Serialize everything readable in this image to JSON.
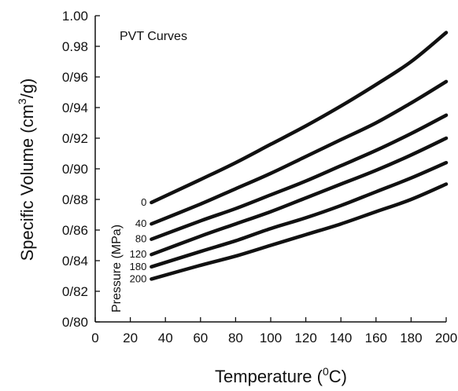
{
  "chart_data": {
    "type": "line",
    "title": "PVT Curves",
    "xlabel_main": "Temperature (",
    "xlabel_sup": "0",
    "xlabel_end": "C)",
    "ylabel_main": "Specific Volume (cm",
    "ylabel_sup": "3",
    "ylabel_end": "/g)",
    "series_axis_label": "Pressure (MPa)",
    "xlim": [
      0,
      200
    ],
    "ylim": [
      0.8,
      1.0
    ],
    "x_ticks": [
      "0",
      "20",
      "40",
      "60",
      "80",
      "100",
      "120",
      "140",
      "160",
      "180",
      "200"
    ],
    "y_ticks": [
      "0/80",
      "0/82",
      "0/84",
      "0/86",
      "0/88",
      "0/90",
      "0/92",
      "0/94",
      "0/96",
      "0.98",
      "1.00"
    ],
    "line_color": "#111111",
    "x": [
      32,
      60,
      80,
      100,
      120,
      140,
      160,
      180,
      200
    ],
    "series": [
      {
        "name": "0",
        "values": [
          0.878,
          0.893,
          0.904,
          0.916,
          0.928,
          0.941,
          0.955,
          0.97,
          0.989
        ]
      },
      {
        "name": "40",
        "values": [
          0.864,
          0.877,
          0.887,
          0.897,
          0.908,
          0.919,
          0.93,
          0.943,
          0.957
        ]
      },
      {
        "name": "80",
        "values": [
          0.854,
          0.866,
          0.874,
          0.883,
          0.892,
          0.902,
          0.912,
          0.923,
          0.935
        ]
      },
      {
        "name": "120",
        "values": [
          0.844,
          0.856,
          0.864,
          0.872,
          0.881,
          0.89,
          0.899,
          0.909,
          0.92
        ]
      },
      {
        "name": "180",
        "values": [
          0.836,
          0.846,
          0.853,
          0.861,
          0.868,
          0.876,
          0.885,
          0.894,
          0.904
        ]
      },
      {
        "name": "200",
        "values": [
          0.828,
          0.837,
          0.843,
          0.85,
          0.857,
          0.864,
          0.872,
          0.88,
          0.89
        ]
      }
    ]
  }
}
